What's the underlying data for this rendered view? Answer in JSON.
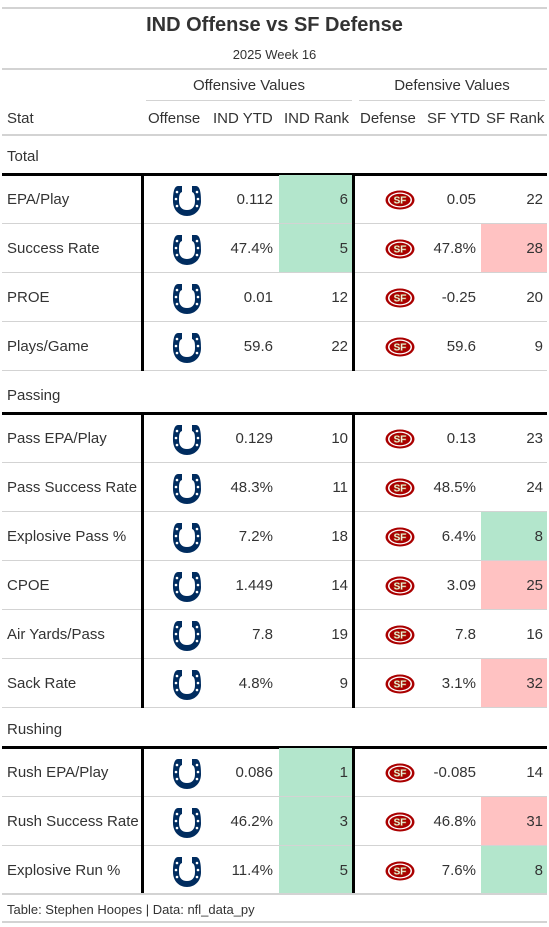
{
  "title": "IND Offense vs SF Defense",
  "subtitle": "2025 Week 16",
  "spanners": {
    "offense": "Offensive Values",
    "defense": "Defensive Values"
  },
  "columns": [
    "Stat",
    "Offense",
    "IND YTD",
    "IND Rank",
    "Defense",
    "SF YTD",
    "SF Rank"
  ],
  "icons": {
    "offense_logo": "colts-horseshoe-icon",
    "defense_logo": "49ers-sf-oval-icon"
  },
  "colors": {
    "good": "#b3e6cc",
    "bad": "#ffc2c2",
    "colts_blue": "#002c5f",
    "niners_red": "#aa0000",
    "niners_gold": "#b3995d"
  },
  "groups": [
    {
      "label": "Total",
      "rows": [
        {
          "stat": "EPA/Play",
          "ind_ytd": "0.112",
          "ind_rank": "6",
          "ind_rank_color": "good",
          "sf_ytd": "0.05",
          "sf_rank": "22",
          "sf_rank_color": ""
        },
        {
          "stat": "Success Rate",
          "ind_ytd": "47.4%",
          "ind_rank": "5",
          "ind_rank_color": "good",
          "sf_ytd": "47.8%",
          "sf_rank": "28",
          "sf_rank_color": "bad"
        },
        {
          "stat": "PROE",
          "ind_ytd": "0.01",
          "ind_rank": "12",
          "ind_rank_color": "",
          "sf_ytd": "-0.25",
          "sf_rank": "20",
          "sf_rank_color": ""
        },
        {
          "stat": "Plays/Game",
          "ind_ytd": "59.6",
          "ind_rank": "22",
          "ind_rank_color": "",
          "sf_ytd": "59.6",
          "sf_rank": "9",
          "sf_rank_color": ""
        }
      ]
    },
    {
      "label": "Passing",
      "rows": [
        {
          "stat": "Pass EPA/Play",
          "ind_ytd": "0.129",
          "ind_rank": "10",
          "ind_rank_color": "",
          "sf_ytd": "0.13",
          "sf_rank": "23",
          "sf_rank_color": ""
        },
        {
          "stat": "Pass Success Rate",
          "ind_ytd": "48.3%",
          "ind_rank": "11",
          "ind_rank_color": "",
          "sf_ytd": "48.5%",
          "sf_rank": "24",
          "sf_rank_color": ""
        },
        {
          "stat": "Explosive Pass %",
          "ind_ytd": "7.2%",
          "ind_rank": "18",
          "ind_rank_color": "",
          "sf_ytd": "6.4%",
          "sf_rank": "8",
          "sf_rank_color": "good"
        },
        {
          "stat": "CPOE",
          "ind_ytd": "1.449",
          "ind_rank": "14",
          "ind_rank_color": "",
          "sf_ytd": "3.09",
          "sf_rank": "25",
          "sf_rank_color": "bad"
        },
        {
          "stat": "Air Yards/Pass",
          "ind_ytd": "7.8",
          "ind_rank": "19",
          "ind_rank_color": "",
          "sf_ytd": "7.8",
          "sf_rank": "16",
          "sf_rank_color": ""
        },
        {
          "stat": "Sack Rate",
          "ind_ytd": "4.8%",
          "ind_rank": "9",
          "ind_rank_color": "",
          "sf_ytd": "3.1%",
          "sf_rank": "32",
          "sf_rank_color": "bad"
        }
      ]
    },
    {
      "label": "Rushing",
      "rows": [
        {
          "stat": "Rush EPA/Play",
          "ind_ytd": "0.086",
          "ind_rank": "1",
          "ind_rank_color": "good",
          "sf_ytd": "-0.085",
          "sf_rank": "14",
          "sf_rank_color": ""
        },
        {
          "stat": "Rush Success Rate",
          "ind_ytd": "46.2%",
          "ind_rank": "3",
          "ind_rank_color": "good",
          "sf_ytd": "46.8%",
          "sf_rank": "31",
          "sf_rank_color": "bad"
        },
        {
          "stat": "Explosive Run %",
          "ind_ytd": "11.4%",
          "ind_rank": "5",
          "ind_rank_color": "good",
          "sf_ytd": "7.6%",
          "sf_rank": "8",
          "sf_rank_color": "good"
        }
      ]
    }
  ],
  "footer": "Table: Stephen Hoopes | Data: nfl_data_py"
}
